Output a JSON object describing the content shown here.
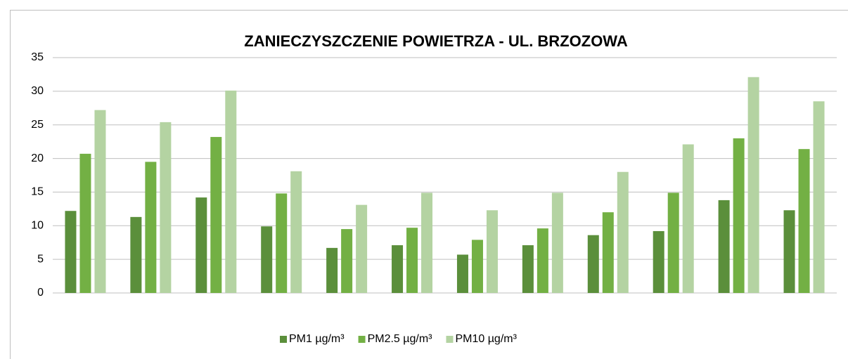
{
  "chart_data": {
    "type": "bar",
    "title": "ZANIECZYSZCZENIE POWIETRZA - UL. BRZOZOWA",
    "categories": [
      null,
      null,
      null,
      null,
      null,
      null,
      null,
      null,
      null,
      null,
      null,
      null
    ],
    "series": [
      {
        "name": "PM1 µg/m³",
        "color": "#5b8f3b",
        "values": [
          12.2,
          11.3,
          14.2,
          9.9,
          6.7,
          7.1,
          5.7,
          7.1,
          8.6,
          9.2,
          13.8,
          12.3
        ]
      },
      {
        "name": "PM2.5 µg/m³",
        "color": "#73b044",
        "values": [
          20.7,
          19.5,
          23.2,
          14.8,
          9.5,
          9.7,
          7.9,
          9.6,
          12.0,
          14.9,
          23.0,
          21.4
        ]
      },
      {
        "name": "PM10 µg/m³",
        "color": "#b4d3a2",
        "values": [
          27.2,
          25.4,
          30.1,
          18.1,
          13.1,
          14.9,
          12.3,
          14.9,
          18.0,
          22.1,
          32.1,
          28.5
        ]
      }
    ],
    "ylim": [
      0,
      35
    ],
    "yticks": [
      0,
      5,
      10,
      15,
      20,
      25,
      30,
      35
    ],
    "grid": true,
    "legend": "bottom"
  }
}
